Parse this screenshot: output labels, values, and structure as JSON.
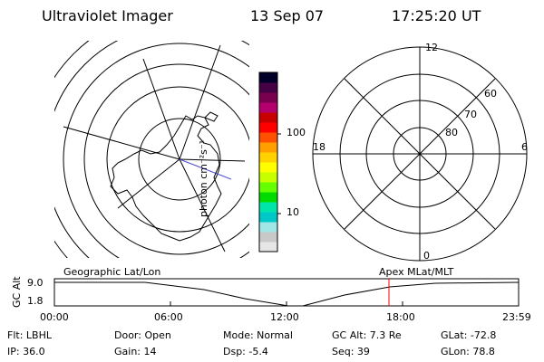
{
  "header": {
    "instrument": "Ultraviolet Imager",
    "date": "13 Sep 07",
    "time": "17:25:20 UT"
  },
  "colorbar": {
    "unit_label": "photon cm⁻²s⁻¹",
    "ticks": [
      {
        "label": "100",
        "value": 100
      },
      {
        "label": "10",
        "value": 10
      }
    ],
    "colors": [
      "#e6e6e6",
      "#c8c8c8",
      "#a0e6e6",
      "#00c8c8",
      "#00e6aa",
      "#00dc00",
      "#64ff00",
      "#c8ff00",
      "#ffff00",
      "#ffd200",
      "#ffa000",
      "#ff5000",
      "#ff0000",
      "#c80000",
      "#b4006e",
      "#78004e",
      "#460046",
      "#000028"
    ]
  },
  "polar_plot": {
    "mlt_labels": {
      "top": "12",
      "left": "18",
      "right": "6",
      "bottom": "0"
    },
    "lat_labels": [
      "60",
      "70",
      "80"
    ]
  },
  "timeline": {
    "left_label": "Geographic Lat/Lon",
    "right_label": "Apex MLat/MLT",
    "axis_title": "GC Alt",
    "y_ticks": [
      "9.0",
      "1.8"
    ],
    "x_ticks": [
      "00:00",
      "06:00",
      "12:00",
      "18:00",
      "23:59"
    ],
    "marker_time": "17:25",
    "marker_color": "#ff0000"
  },
  "info": {
    "filter": "Flt: LBHL",
    "ip": "IP: 36.0",
    "door": "Door: Open",
    "gain": "Gain: 14",
    "mode": "Mode: Normal",
    "dsp": "Dsp:    -5.4",
    "gc_alt": "GC Alt: 7.3 Re",
    "seq": "Seq: 39",
    "glat": "GLat: -72.8",
    "glon": "GLon:  78.8"
  }
}
